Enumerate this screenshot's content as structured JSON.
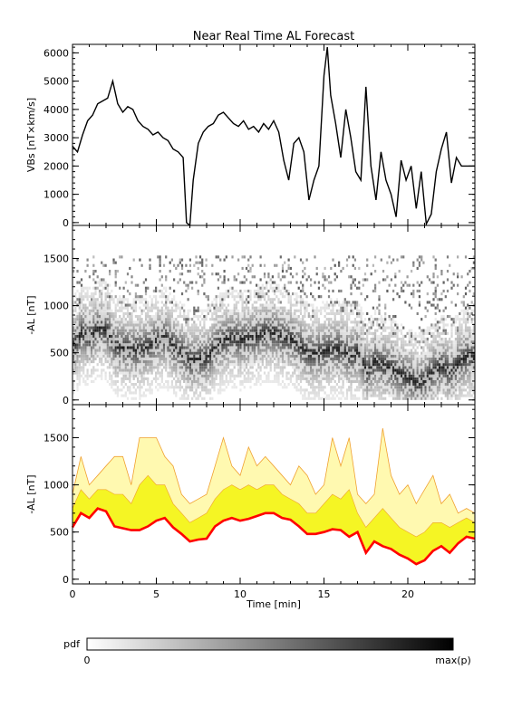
{
  "title": "Near Real Time AL Forecast",
  "colors": {
    "background": "#ffffff",
    "axis": "#000000",
    "vbs_line": "#000000",
    "band_outer": "#fff9b0",
    "band_inner": "#f5f524",
    "band_edge": "#f0a030",
    "median_line": "#ff0000"
  },
  "chart_data": [
    {
      "type": "line",
      "ylabel": "VBs [nT×km/s]",
      "xlim": [
        0,
        24
      ],
      "ylim": [
        -100,
        6300
      ],
      "x_ticks": [
        0,
        5,
        10,
        15,
        20
      ],
      "y_ticks": [
        0,
        1000,
        2000,
        3000,
        4000,
        5000,
        6000
      ],
      "series": [
        {
          "x": [
            0,
            0.3,
            0.6,
            0.9,
            1.2,
            1.5,
            1.8,
            2.1,
            2.4,
            2.7,
            3.0,
            3.3,
            3.6,
            3.9,
            4.2,
            4.5,
            4.8,
            5.1,
            5.4,
            5.7,
            6.0,
            6.3,
            6.6,
            6.8,
            7.0,
            7.2,
            7.5,
            7.8,
            8.1,
            8.4,
            8.7,
            9.0,
            9.3,
            9.6,
            9.9,
            10.2,
            10.5,
            10.8,
            11.1,
            11.4,
            11.7,
            12.0,
            12.3,
            12.6,
            12.9,
            13.2,
            13.5,
            13.8,
            14.1,
            14.4,
            14.7,
            15.0,
            15.2,
            15.4,
            15.7,
            16.0,
            16.3,
            16.6,
            16.9,
            17.2,
            17.5,
            17.8,
            18.1,
            18.4,
            18.7,
            19.0,
            19.3,
            19.6,
            19.9,
            20.2,
            20.5,
            20.8,
            21.1,
            21.4,
            21.7,
            22.0,
            22.3,
            22.6,
            22.9,
            23.2,
            23.5,
            24.0
          ],
          "y": [
            2700,
            2500,
            3100,
            3600,
            3800,
            4200,
            4300,
            4400,
            5000,
            4200,
            3900,
            4100,
            4000,
            3600,
            3400,
            3300,
            3100,
            3200,
            3000,
            2900,
            2600,
            2500,
            2300,
            0,
            -100,
            1500,
            2800,
            3200,
            3400,
            3500,
            3800,
            3900,
            3700,
            3500,
            3400,
            3600,
            3300,
            3400,
            3200,
            3500,
            3300,
            3600,
            3200,
            2200,
            1500,
            2800,
            3000,
            2500,
            800,
            1500,
            2000,
            5200,
            6200,
            4500,
            3500,
            2300,
            4000,
            3000,
            1800,
            1500,
            4800,
            2000,
            800,
            2500,
            1500,
            1000,
            200,
            2200,
            1500,
            2000,
            500,
            1800,
            -50,
            300,
            1800,
            2600,
            3200,
            1400,
            2300,
            2000,
            2000,
            2000
          ]
        }
      ]
    },
    {
      "type": "heatmap",
      "ylabel": "-AL [nT]",
      "xlim": [
        0,
        24
      ],
      "ylim": [
        -50,
        1850
      ],
      "x_ticks": [
        0,
        5,
        10,
        15,
        20
      ],
      "y_ticks": [
        0,
        500,
        1000,
        1500
      ],
      "series": [
        {
          "name": "-AL median",
          "x": [
            0,
            0.5,
            1.0,
            1.5,
            2.0,
            2.5,
            3.0,
            3.5,
            4.0,
            4.5,
            5.0,
            5.5,
            6.0,
            6.5,
            7.0,
            7.5,
            8.0,
            8.5,
            9.0,
            9.5,
            10.0,
            10.5,
            11.0,
            11.5,
            12.0,
            12.5,
            13.0,
            13.5,
            14.0,
            14.5,
            15.0,
            15.5,
            16.0,
            16.5,
            17.0,
            17.5,
            18.0,
            18.5,
            19.0,
            19.5,
            20.0,
            20.5,
            21.0,
            21.5,
            22.0,
            22.5,
            23.0,
            23.5,
            24.0
          ],
          "y": [
            550,
            700,
            650,
            750,
            720,
            560,
            540,
            520,
            520,
            560,
            620,
            650,
            550,
            480,
            400,
            420,
            430,
            560,
            620,
            650,
            620,
            640,
            670,
            700,
            700,
            650,
            630,
            560,
            480,
            480,
            500,
            530,
            520,
            450,
            500,
            280,
            400,
            350,
            320,
            260,
            220,
            160,
            200,
            300,
            350,
            280,
            380,
            450,
            430
          ]
        }
      ]
    },
    {
      "type": "area",
      "ylabel": "-AL [nT]",
      "xlabel": "Time [min]",
      "xlim": [
        0,
        24
      ],
      "ylim": [
        -50,
        1850
      ],
      "x_ticks": [
        0,
        5,
        10,
        15,
        20
      ],
      "x_tick_labels": [
        "0",
        "5",
        "10",
        "15",
        "20"
      ],
      "y_ticks": [
        0,
        500,
        1000,
        1500
      ],
      "x": [
        0,
        0.5,
        1.0,
        1.5,
        2.0,
        2.5,
        3.0,
        3.5,
        4.0,
        4.5,
        5.0,
        5.5,
        6.0,
        6.5,
        7.0,
        7.5,
        8.0,
        8.5,
        9.0,
        9.5,
        10.0,
        10.5,
        11.0,
        11.5,
        12.0,
        12.5,
        13.0,
        13.5,
        14.0,
        14.5,
        15.0,
        15.5,
        16.0,
        16.5,
        17.0,
        17.5,
        18.0,
        18.5,
        19.0,
        19.5,
        20.0,
        20.5,
        21.0,
        21.5,
        22.0,
        22.5,
        23.0,
        23.5,
        24.0
      ],
      "series": [
        {
          "name": "upper outer",
          "y": [
            900,
            1300,
            1000,
            1100,
            1200,
            1300,
            1300,
            1000,
            1500,
            1500,
            1500,
            1300,
            1200,
            900,
            800,
            850,
            900,
            1200,
            1500,
            1200,
            1100,
            1400,
            1200,
            1300,
            1200,
            1100,
            1000,
            1200,
            1100,
            900,
            1000,
            1500,
            1200,
            1500,
            900,
            800,
            900,
            1600,
            1100,
            900,
            1000,
            800,
            950,
            1100,
            800,
            900,
            700,
            750,
            700
          ]
        },
        {
          "name": "upper inner",
          "y": [
            750,
            950,
            850,
            950,
            950,
            900,
            900,
            800,
            1000,
            1100,
            1000,
            1000,
            800,
            700,
            600,
            650,
            700,
            850,
            950,
            1000,
            950,
            1000,
            950,
            1000,
            1000,
            900,
            850,
            800,
            700,
            700,
            800,
            900,
            850,
            950,
            700,
            550,
            650,
            750,
            650,
            550,
            500,
            450,
            500,
            600,
            600,
            550,
            600,
            650,
            600
          ]
        },
        {
          "name": "median",
          "y": [
            550,
            700,
            650,
            750,
            720,
            560,
            540,
            520,
            520,
            560,
            620,
            650,
            550,
            480,
            400,
            420,
            430,
            560,
            620,
            650,
            620,
            640,
            670,
            700,
            700,
            650,
            630,
            560,
            480,
            480,
            500,
            530,
            520,
            450,
            500,
            280,
            400,
            350,
            320,
            260,
            220,
            160,
            200,
            300,
            350,
            280,
            380,
            450,
            430
          ]
        }
      ]
    }
  ],
  "colorbar": {
    "label": "pdf",
    "min_label": "0",
    "max_label": "max(p)"
  }
}
